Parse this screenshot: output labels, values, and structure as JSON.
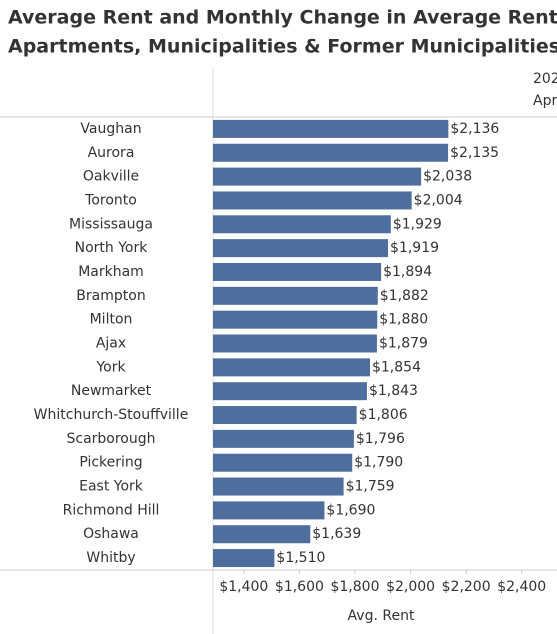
{
  "chart_data": {
    "type": "bar",
    "orientation": "horizontal",
    "title_lines": [
      "Average Rent and Monthly Change in Average Rent fo",
      "Apartments, Municipalities & Former Municipalities"
    ],
    "column_header": [
      "202",
      "Apr"
    ],
    "categories": [
      "Vaughan",
      "Aurora",
      "Oakville",
      "Toronto",
      "Mississauga",
      "North York",
      "Markham",
      "Brampton",
      "Milton",
      "Ajax",
      "York",
      "Newmarket",
      "Whitchurch-Stouffville",
      "Scarborough",
      "Pickering",
      "East York",
      "Richmond Hill",
      "Oshawa",
      "Whitby"
    ],
    "values": [
      2136,
      2135,
      2038,
      2004,
      1929,
      1919,
      1894,
      1882,
      1880,
      1879,
      1854,
      1843,
      1806,
      1796,
      1790,
      1759,
      1690,
      1639,
      1510
    ],
    "value_labels": [
      "$2,136",
      "$2,135",
      "$2,038",
      "$2,004",
      "$1,929",
      "$1,919",
      "$1,894",
      "$1,882",
      "$1,880",
      "$1,879",
      "$1,854",
      "$1,843",
      "$1,806",
      "$1,796",
      "$1,790",
      "$1,759",
      "$1,690",
      "$1,639",
      "$1,510"
    ],
    "color": "#4e6f9e",
    "xlabel": "Avg. Rent",
    "xlim": [
      1289,
      2527
    ],
    "xticks": [
      {
        "value": 1400,
        "label": "$1,400"
      },
      {
        "value": 1600,
        "label": "$1,600"
      },
      {
        "value": 1800,
        "label": "$1,800"
      },
      {
        "value": 2000,
        "label": "$2,000"
      },
      {
        "value": 2200,
        "label": "$2,200"
      },
      {
        "value": 2400,
        "label": "$2,400"
      }
    ],
    "grid": false
  }
}
